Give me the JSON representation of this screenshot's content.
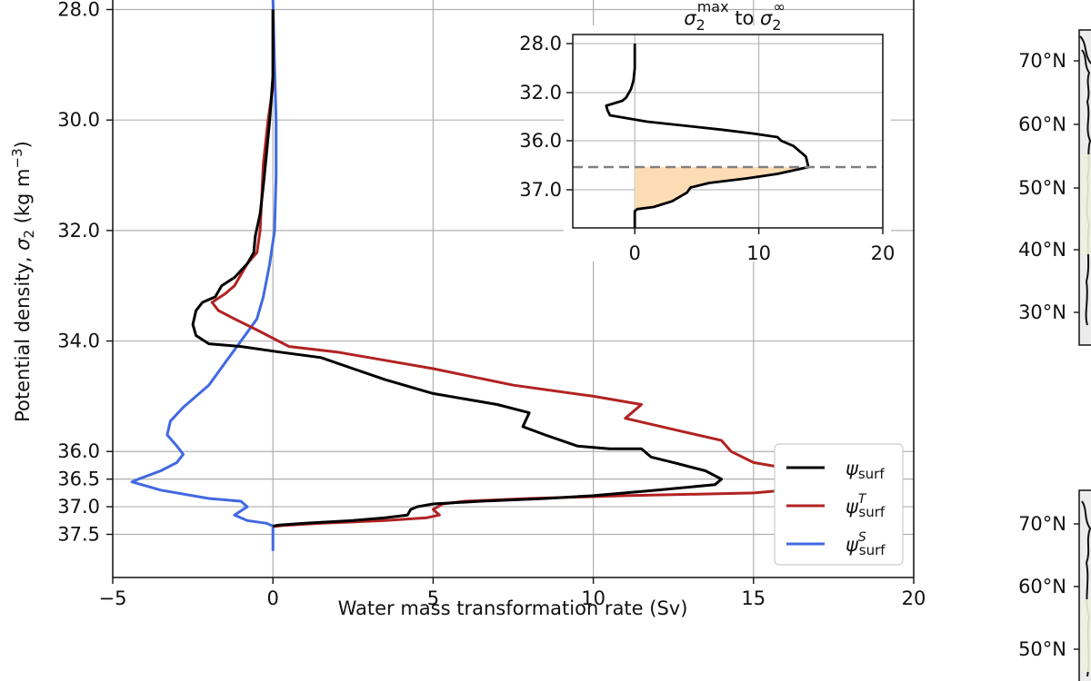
{
  "chart_data": [
    {
      "type": "line",
      "xlabel": "Water mass transformation rate (Sv)",
      "ylabel_prefix": "Potential density, ",
      "ylabel_symbol": "σ",
      "ylabel_subscript": "2",
      "ylabel_unit": "(kg m",
      "ylabel_unit_exp": "−3",
      "ylabel_unit_close": ")",
      "xlim": [
        -5,
        20
      ],
      "ylim": [
        27.8,
        37.8
      ],
      "y_axis_inverted": true,
      "grid": true,
      "legend_placement": "lower-right",
      "x_ticks": [
        -5,
        0,
        5,
        10,
        15,
        20
      ],
      "x_tick_labels": [
        "−5",
        "0",
        "5",
        "10",
        "15",
        "20"
      ],
      "y_ticks": [
        28.0,
        30.0,
        32.0,
        34.0,
        36.0,
        36.5,
        37.0,
        37.5
      ],
      "y_tick_labels": [
        "28.0",
        "30.0",
        "32.0",
        "34.0",
        "36.0",
        "36.5",
        "37.0",
        "37.5"
      ],
      "series": [
        {
          "name": "ψ_surf",
          "legend_symbol": "ψ",
          "legend_sub": "surf",
          "legend_sup": "",
          "color": "#000000",
          "points": [
            [
              0,
              28.0
            ],
            [
              0,
              29.2
            ],
            [
              -0.1,
              30.0
            ],
            [
              -0.2,
              30.6
            ],
            [
              -0.3,
              31.2
            ],
            [
              -0.4,
              31.7
            ],
            [
              -0.55,
              32.1
            ],
            [
              -0.6,
              32.4
            ],
            [
              -0.8,
              32.6
            ],
            [
              -1.2,
              32.85
            ],
            [
              -1.6,
              33.0
            ],
            [
              -1.8,
              33.2
            ],
            [
              -2.2,
              33.3
            ],
            [
              -2.4,
              33.45
            ],
            [
              -2.5,
              33.7
            ],
            [
              -2.4,
              33.9
            ],
            [
              -2.0,
              34.05
            ],
            [
              -1.0,
              34.1
            ],
            [
              0.2,
              34.2
            ],
            [
              1.5,
              34.3
            ],
            [
              2.5,
              34.5
            ],
            [
              3.5,
              34.7
            ],
            [
              5.0,
              34.95
            ],
            [
              7.0,
              35.15
            ],
            [
              8.0,
              35.3
            ],
            [
              7.8,
              35.55
            ],
            [
              8.5,
              35.7
            ],
            [
              9.5,
              35.9
            ],
            [
              10.5,
              35.95
            ],
            [
              11.5,
              35.95
            ],
            [
              11.8,
              36.1
            ],
            [
              12.5,
              36.2
            ],
            [
              13.5,
              36.35
            ],
            [
              14.0,
              36.5
            ],
            [
              13.8,
              36.6
            ],
            [
              12.0,
              36.7
            ],
            [
              10.0,
              36.8
            ],
            [
              8.5,
              36.85
            ],
            [
              6.5,
              36.9
            ],
            [
              5.0,
              36.95
            ],
            [
              4.5,
              37.0
            ],
            [
              4.3,
              37.05
            ],
            [
              4.2,
              37.15
            ],
            [
              3.5,
              37.2
            ],
            [
              2.5,
              37.25
            ],
            [
              1.0,
              37.3
            ],
            [
              0.2,
              37.33
            ],
            [
              0,
              37.35
            ]
          ]
        },
        {
          "name": "ψ_surf^T",
          "legend_symbol": "ψ",
          "legend_sub": "surf",
          "legend_sup": "T",
          "color": "#b22222",
          "points": [
            [
              0,
              28.0
            ],
            [
              0,
              29.4
            ],
            [
              -0.15,
              30.0
            ],
            [
              -0.3,
              30.8
            ],
            [
              -0.35,
              31.4
            ],
            [
              -0.4,
              32.0
            ],
            [
              -0.5,
              32.4
            ],
            [
              -0.8,
              32.6
            ],
            [
              -1.0,
              32.8
            ],
            [
              -1.2,
              33.0
            ],
            [
              -1.5,
              33.15
            ],
            [
              -1.9,
              33.3
            ],
            [
              -1.7,
              33.45
            ],
            [
              -1.2,
              33.6
            ],
            [
              -0.5,
              33.8
            ],
            [
              0.5,
              34.1
            ],
            [
              2.0,
              34.2
            ],
            [
              3.5,
              34.35
            ],
            [
              5.0,
              34.5
            ],
            [
              7.5,
              34.8
            ],
            [
              10.0,
              35.0
            ],
            [
              11.5,
              35.15
            ],
            [
              11.0,
              35.4
            ],
            [
              12.5,
              35.6
            ],
            [
              14.0,
              35.8
            ],
            [
              14.3,
              36.0
            ],
            [
              15.0,
              36.2
            ],
            [
              16.5,
              36.35
            ],
            [
              17.8,
              36.45
            ],
            [
              18.5,
              36.55
            ],
            [
              17.0,
              36.65
            ],
            [
              15.0,
              36.75
            ],
            [
              11.0,
              36.8
            ],
            [
              8.0,
              36.85
            ],
            [
              6.0,
              36.9
            ],
            [
              5.3,
              36.95
            ],
            [
              5.0,
              37.05
            ],
            [
              5.2,
              37.15
            ],
            [
              4.8,
              37.2
            ],
            [
              3.5,
              37.25
            ],
            [
              1.5,
              37.3
            ],
            [
              0.3,
              37.34
            ],
            [
              0,
              37.36
            ]
          ]
        },
        {
          "name": "ψ_surf^S",
          "legend_symbol": "ψ",
          "legend_sub": "surf",
          "legend_sup": "S",
          "color": "#4169e1",
          "points": [
            [
              0,
              27.8
            ],
            [
              0.05,
              29.0
            ],
            [
              0.1,
              30.0
            ],
            [
              0.1,
              31.0
            ],
            [
              0.05,
              32.0
            ],
            [
              -0.1,
              32.6
            ],
            [
              -0.3,
              33.2
            ],
            [
              -0.5,
              33.6
            ],
            [
              -1.0,
              34.0
            ],
            [
              -1.5,
              34.4
            ],
            [
              -2.0,
              34.8
            ],
            [
              -2.8,
              35.2
            ],
            [
              -3.2,
              35.45
            ],
            [
              -3.3,
              35.7
            ],
            [
              -3.0,
              35.9
            ],
            [
              -2.8,
              36.05
            ],
            [
              -3.0,
              36.2
            ],
            [
              -3.5,
              36.35
            ],
            [
              -4.2,
              36.5
            ],
            [
              -4.4,
              36.55
            ],
            [
              -3.5,
              36.7
            ],
            [
              -2.0,
              36.85
            ],
            [
              -1.0,
              36.9
            ],
            [
              -0.8,
              37.0
            ],
            [
              -1.2,
              37.15
            ],
            [
              -0.8,
              37.25
            ],
            [
              -0.2,
              37.3
            ],
            [
              0,
              37.35
            ],
            [
              0,
              37.8
            ]
          ]
        }
      ]
    },
    {
      "type": "line",
      "title_parts": [
        "σ",
        "2",
        "max",
        " to ",
        "σ",
        "2",
        "∞"
      ],
      "xlim": [
        -5,
        20
      ],
      "ylim": [
        27.8,
        37.8
      ],
      "y_axis_inverted": true,
      "grid": true,
      "x_ticks": [
        0,
        10,
        20
      ],
      "x_tick_labels": [
        "0",
        "10",
        "20"
      ],
      "y_ticks": [
        28.0,
        32.0,
        36.0,
        37.0
      ],
      "y_tick_labels": [
        "28.0",
        "32.0",
        "36.0",
        "37.0"
      ],
      "reference_line_y": 36.5,
      "shaded_fill_color": "#fcdcb4",
      "series": [
        {
          "name": "",
          "color": "#000000",
          "points": [
            [
              0,
              28.0
            ],
            [
              0,
              30.0
            ],
            [
              -0.1,
              31.0
            ],
            [
              -0.3,
              31.7
            ],
            [
              -0.7,
              32.3
            ],
            [
              -1.0,
              32.5
            ],
            [
              -2.3,
              32.8
            ],
            [
              -2.2,
              33.1
            ],
            [
              -2.0,
              33.5
            ],
            [
              1.0,
              34.0
            ],
            [
              4.0,
              34.4
            ],
            [
              7.0,
              34.8
            ],
            [
              9.5,
              35.2
            ],
            [
              10.5,
              35.4
            ],
            [
              11.5,
              35.6
            ],
            [
              11.8,
              36.0
            ],
            [
              12.8,
              36.1
            ],
            [
              13.8,
              36.3
            ],
            [
              14.0,
              36.5
            ],
            [
              11.5,
              36.65
            ],
            [
              9.0,
              36.75
            ],
            [
              6.0,
              36.85
            ],
            [
              4.5,
              36.95
            ],
            [
              4.2,
              37.05
            ],
            [
              3.0,
              37.2
            ],
            [
              1.5,
              37.3
            ],
            [
              0.2,
              37.35
            ],
            [
              0,
              37.4
            ],
            [
              0,
              37.8
            ]
          ]
        }
      ]
    }
  ],
  "right_maps": {
    "top": {
      "lat_labels": [
        "70°N",
        "60°N",
        "50°N",
        "40°N",
        "30°N"
      ],
      "lat_values": [
        70,
        60,
        50,
        40,
        30
      ]
    },
    "bottom": {
      "lat_labels": [
        "70°N",
        "60°N",
        "50°N"
      ],
      "lat_values": [
        70,
        60,
        50
      ]
    }
  }
}
